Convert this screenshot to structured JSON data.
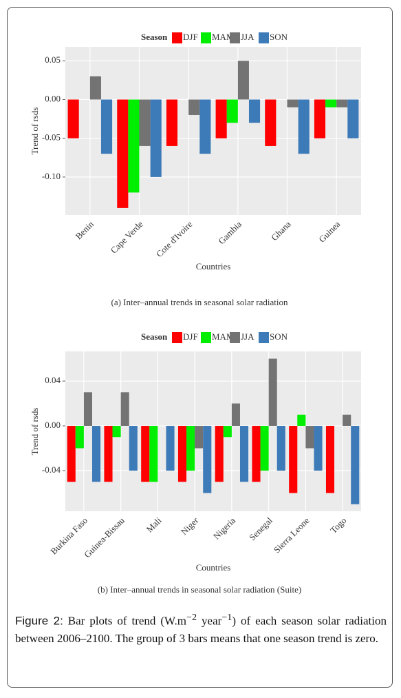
{
  "chart_data": [
    {
      "type": "bar",
      "title": "(a) Inter–annual trends in seasonal solar radiation",
      "x_label": "Countries",
      "y_label": "Trend of rsds",
      "legend_title": "Season",
      "categories": [
        "Benin",
        "Cape Verde",
        "Cote d'Ivoire",
        "Gambia",
        "Ghana",
        "Guinea"
      ],
      "series": [
        {
          "name": "DJF",
          "color": "#ff0000",
          "values": [
            -0.05,
            -0.14,
            -0.06,
            -0.05,
            -0.06,
            -0.05
          ]
        },
        {
          "name": "MAM",
          "color": "#00ee00",
          "values": [
            0,
            -0.12,
            0,
            -0.03,
            0,
            -0.01
          ]
        },
        {
          "name": "JJA",
          "color": "#737373",
          "values": [
            0.03,
            -0.06,
            -0.02,
            0.05,
            -0.01,
            -0.01
          ]
        },
        {
          "name": "SON",
          "color": "#3d7ab8",
          "values": [
            -0.07,
            -0.1,
            -0.07,
            -0.03,
            -0.07,
            -0.05
          ]
        }
      ],
      "ylim": [
        -0.149,
        0.068
      ],
      "yticks": [
        0.05,
        {
          "value": 0,
          "label": "0.00"
        },
        -0.05,
        {
          "value": -0.1,
          "label": "-0.10"
        }
      ],
      "grid": true,
      "legend": "top"
    },
    {
      "type": "bar",
      "title": "(b) Inter–annual trends in seasonal solar radiation (Suite)",
      "x_label": "Countries",
      "y_label": "Trend of rsds",
      "legend_title": "Season",
      "categories": [
        "Burkina Faso",
        "Guinea-Bissau",
        "Mali",
        "Niger",
        "Nigeria",
        "Senegal",
        "Sierra Leone",
        "Togo"
      ],
      "series": [
        {
          "name": "DJF",
          "color": "#ff0000",
          "values": [
            -0.05,
            -0.05,
            -0.05,
            -0.05,
            -0.05,
            -0.05,
            -0.06,
            -0.06
          ]
        },
        {
          "name": "MAM",
          "color": "#00ee00",
          "values": [
            -0.02,
            -0.01,
            -0.05,
            -0.04,
            -0.01,
            -0.04,
            0.01,
            0
          ]
        },
        {
          "name": "JJA",
          "color": "#737373",
          "values": [
            0.03,
            0.03,
            0,
            -0.02,
            0.02,
            0.06,
            -0.02,
            0.01
          ]
        },
        {
          "name": "SON",
          "color": "#3d7ab8",
          "values": [
            -0.05,
            -0.04,
            -0.04,
            -0.06,
            -0.05,
            -0.04,
            -0.04,
            -0.07
          ]
        }
      ],
      "ylim": [
        -0.0763,
        0.0665
      ],
      "yticks": [
        0.04,
        {
          "value": 0,
          "label": "0.00"
        },
        -0.04
      ],
      "grid": true,
      "legend": "top"
    }
  ],
  "caption": {
    "label": "Figure 2:",
    "parts": [
      "Bar plots of trend (W.m",
      "−2",
      " year",
      "−1",
      ") of each season solar radiation between 2006–2100. The group of 3 bars means that one season trend is zero."
    ]
  }
}
